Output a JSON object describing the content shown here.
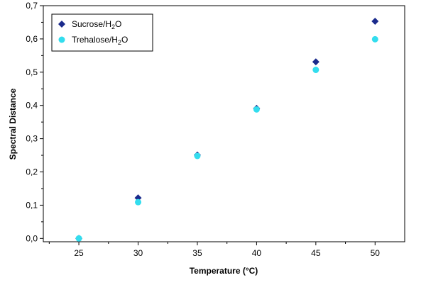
{
  "chart_data": {
    "type": "scatter",
    "xlabel": "Temperature (°C)",
    "ylabel": "Spectral Distance",
    "xlim": [
      22,
      52.5
    ],
    "ylim": [
      -0.01,
      0.7
    ],
    "x_ticks": [
      25,
      30,
      35,
      40,
      45,
      50
    ],
    "x_tick_labels": [
      "25",
      "30",
      "35",
      "40",
      "45",
      "50"
    ],
    "y_ticks": [
      0.0,
      0.1,
      0.2,
      0.3,
      0.4,
      0.5,
      0.6,
      0.7
    ],
    "y_tick_labels": [
      "0,0",
      "0,1",
      "0,2",
      "0,3",
      "0,4",
      "0,5",
      "0,6",
      "0,7"
    ],
    "grid": false,
    "legend_position": "top-left",
    "series": [
      {
        "name": "Sucrose/H2O",
        "name_main": "Sucrose/H",
        "name_sub": "2",
        "name_tail": "O",
        "marker": "diamond",
        "color": "#1a2a8c",
        "x": [
          25,
          30,
          35,
          40,
          45,
          50
        ],
        "y": [
          0.0,
          0.122,
          0.251,
          0.391,
          0.531,
          0.653
        ]
      },
      {
        "name": "Trehalose/H2O",
        "name_main": "Trehalose/H",
        "name_sub": "2",
        "name_tail": "O",
        "marker": "circle",
        "color": "#33ddee",
        "x": [
          25,
          30,
          35,
          40,
          45,
          50
        ],
        "y": [
          0.0,
          0.109,
          0.248,
          0.388,
          0.507,
          0.599
        ]
      }
    ]
  }
}
